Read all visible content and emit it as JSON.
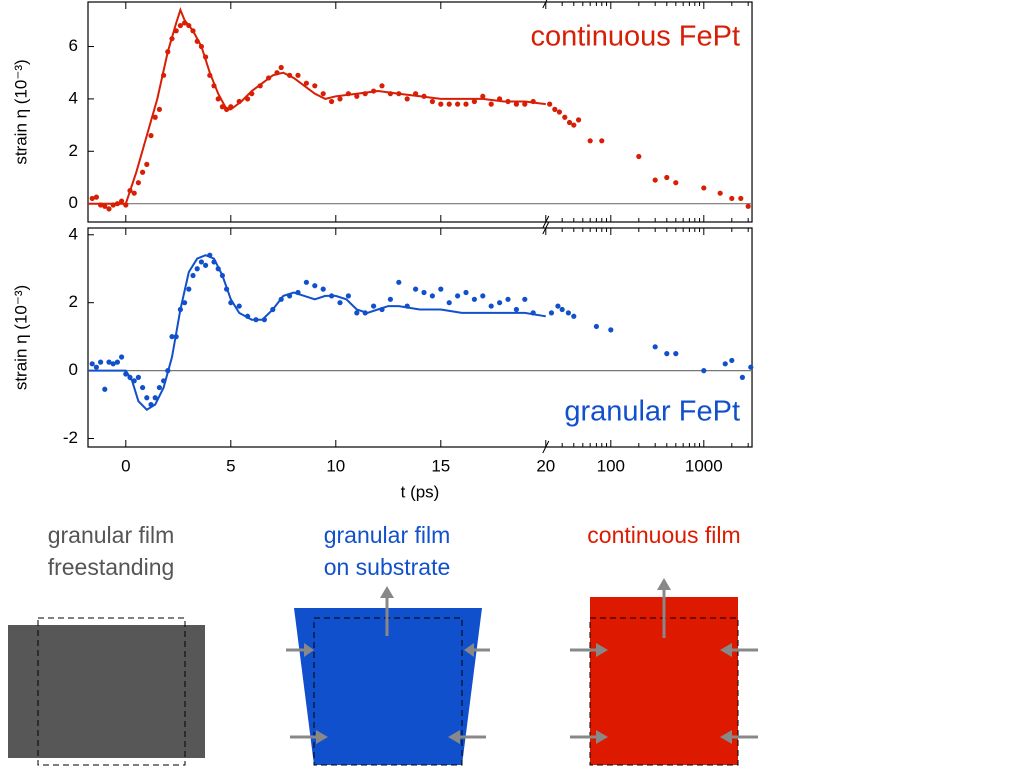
{
  "chart_data": [
    {
      "type": "scatter",
      "annotation": "continuous FePt",
      "annotation_color": "#d81e05",
      "ylabel": "strain η (10⁻³)",
      "xscale": "linear-log",
      "xbreak": 20,
      "xlim": [
        -1.8,
        3300
      ],
      "xticks": [
        0,
        5,
        10,
        15,
        20,
        100,
        1000
      ],
      "xminorticks": [
        30,
        40,
        50,
        60,
        70,
        80,
        90,
        200,
        300,
        400,
        500,
        600,
        700,
        800,
        900,
        2000,
        3000
      ],
      "show_xtick_labels": false,
      "ylim": [
        -0.7,
        7.7
      ],
      "yticks": [
        0,
        2,
        4,
        6
      ],
      "hline": 0,
      "series": [
        {
          "mode": "markers",
          "color": "#d81e05",
          "x": [
            -1.6,
            -1.4,
            -1.2,
            -1.0,
            -0.8,
            -0.6,
            -0.4,
            -0.2,
            0,
            0.2,
            0.4,
            0.6,
            0.8,
            1.0,
            1.2,
            1.4,
            1.6,
            1.8,
            2.0,
            2.2,
            2.4,
            2.6,
            2.8,
            3.0,
            3.2,
            3.4,
            3.6,
            3.8,
            4.0,
            4.2,
            4.4,
            4.6,
            4.8,
            5.0,
            5.4,
            5.8,
            6.0,
            6.4,
            6.8,
            7.2,
            7.4,
            7.8,
            8.2,
            8.6,
            9.0,
            9.4,
            9.8,
            10.2,
            10.6,
            11.0,
            11.4,
            11.8,
            12.2,
            12.6,
            13.0,
            13.4,
            13.8,
            14.2,
            14.6,
            15.0,
            15.4,
            15.8,
            16.2,
            16.6,
            17.0,
            17.4,
            17.8,
            18.2,
            18.6,
            19.0,
            19.4,
            22,
            25,
            28,
            32,
            36,
            40,
            45,
            60,
            80,
            200,
            300,
            400,
            500,
            1000,
            1500,
            2000,
            2500,
            3000
          ],
          "values": [
            0.2,
            0.25,
            -0.05,
            -0.1,
            -0.2,
            -0.05,
            0.0,
            0.1,
            -0.05,
            0.5,
            0.4,
            0.8,
            1.2,
            1.5,
            2.6,
            3.3,
            3.6,
            4.9,
            5.8,
            6.3,
            6.6,
            6.8,
            6.9,
            6.8,
            6.6,
            6.2,
            6.0,
            5.6,
            4.9,
            4.5,
            4.0,
            3.7,
            3.6,
            3.7,
            3.9,
            4.0,
            4.2,
            4.5,
            4.8,
            5.0,
            5.2,
            4.9,
            4.9,
            4.6,
            4.5,
            4.2,
            3.9,
            4.0,
            4.2,
            4.1,
            4.2,
            4.3,
            4.5,
            4.2,
            4.2,
            4.0,
            4.2,
            4.1,
            3.9,
            3.8,
            3.8,
            3.8,
            3.8,
            3.9,
            4.1,
            3.8,
            4.0,
            3.9,
            3.8,
            3.8,
            3.9,
            3.8,
            3.6,
            3.5,
            3.3,
            3.1,
            3.0,
            3.2,
            2.4,
            2.4,
            1.8,
            0.9,
            1.0,
            0.8,
            0.6,
            0.4,
            0.2,
            0.2,
            -0.1
          ]
        },
        {
          "mode": "line",
          "color": "#d81e05",
          "x": [
            -1.8,
            0,
            0.5,
            1,
            1.5,
            2,
            2.4,
            2.6,
            2.8,
            3.2,
            3.6,
            4,
            4.4,
            4.8,
            5,
            5.5,
            6,
            6.5,
            7,
            7.5,
            8,
            8.5,
            9,
            9.5,
            10,
            11,
            12,
            13,
            14,
            15,
            16,
            17,
            18,
            19,
            20
          ],
          "values": [
            0,
            0,
            1.2,
            2.6,
            4.0,
            5.8,
            6.9,
            7.4,
            7.0,
            6.6,
            6.0,
            5.0,
            4.2,
            3.6,
            3.6,
            3.9,
            4.3,
            4.6,
            4.9,
            5.0,
            4.8,
            4.5,
            4.2,
            4.0,
            4.1,
            4.2,
            4.3,
            4.2,
            4.1,
            4.0,
            4.0,
            4.0,
            3.9,
            3.9,
            3.8
          ]
        }
      ]
    },
    {
      "type": "scatter",
      "annotation": "granular FePt",
      "annotation_color": "#1150cc",
      "ylabel": "strain η (10⁻³)",
      "xlabel": "t (ps)",
      "xscale": "linear-log",
      "xbreak": 20,
      "xlim": [
        -1.8,
        3300
      ],
      "xticks": [
        0,
        5,
        10,
        15,
        20,
        100,
        1000
      ],
      "xminorticks": [
        30,
        40,
        50,
        60,
        70,
        80,
        90,
        200,
        300,
        400,
        500,
        600,
        700,
        800,
        900,
        2000,
        3000
      ],
      "show_xtick_labels": true,
      "ylim": [
        -2.25,
        4.2
      ],
      "yticks": [
        -2,
        0,
        2,
        4
      ],
      "hline": 0,
      "series": [
        {
          "mode": "markers",
          "color": "#1150cc",
          "x": [
            -1.6,
            -1.4,
            -1.2,
            -1,
            -0.8,
            -0.6,
            -0.4,
            -0.2,
            0,
            0.2,
            0.4,
            0.6,
            0.8,
            1,
            1.2,
            1.4,
            1.6,
            1.8,
            2,
            2.2,
            2.4,
            2.6,
            2.8,
            3.0,
            3.2,
            3.4,
            3.6,
            3.8,
            4.0,
            4.2,
            4.4,
            4.6,
            4.8,
            5,
            5.4,
            5.8,
            6.2,
            6.6,
            7,
            7.4,
            7.8,
            8.2,
            8.6,
            9,
            9.4,
            9.8,
            10.2,
            10.6,
            11,
            11.4,
            11.8,
            12.2,
            12.6,
            13,
            13.4,
            13.8,
            14.2,
            14.6,
            15,
            15.4,
            15.8,
            16.2,
            16.6,
            17,
            17.4,
            17.8,
            18.2,
            18.6,
            19,
            19.4,
            23,
            27,
            30,
            35,
            40,
            70,
            100,
            300,
            400,
            500,
            1000,
            1700,
            2000,
            2600,
            3200
          ],
          "values": [
            0.2,
            0.1,
            0.25,
            -0.55,
            0.25,
            0.2,
            0.25,
            0.4,
            -0.1,
            -0.2,
            -0.3,
            -0.2,
            -0.5,
            -0.8,
            -1.0,
            -0.8,
            -0.5,
            -0.3,
            0.0,
            1.0,
            1.0,
            1.8,
            2.0,
            2.4,
            2.8,
            3.0,
            3.2,
            3.1,
            3.4,
            3.2,
            3.0,
            2.8,
            2.4,
            2.0,
            1.9,
            1.6,
            1.5,
            1.5,
            1.8,
            2.1,
            2.2,
            2.3,
            2.6,
            2.5,
            2.4,
            2.2,
            2.0,
            2.2,
            1.7,
            1.7,
            1.9,
            1.8,
            2.1,
            2.6,
            1.9,
            2.4,
            2.3,
            2.2,
            2.4,
            2.0,
            2.2,
            2.3,
            2.1,
            2.2,
            1.9,
            2.0,
            2.1,
            1.8,
            2.1,
            1.7,
            1.7,
            1.9,
            1.8,
            1.7,
            1.6,
            1.3,
            1.2,
            0.7,
            0.5,
            0.5,
            0.0,
            0.2,
            0.3,
            -0.2,
            0.1
          ]
        },
        {
          "mode": "line",
          "color": "#1150cc",
          "x": [
            -1.8,
            0,
            0.3,
            0.6,
            1,
            1.4,
            1.8,
            2.2,
            2.6,
            3,
            3.4,
            3.8,
            4.2,
            4.6,
            5,
            5.4,
            6,
            6.5,
            7,
            7.5,
            8,
            8.5,
            9,
            9.5,
            10,
            10.5,
            11,
            11.5,
            12,
            12.5,
            13,
            14,
            15,
            16,
            17,
            18,
            19,
            20
          ],
          "values": [
            0,
            0,
            -0.3,
            -0.9,
            -1.15,
            -1.0,
            -0.5,
            0.4,
            1.8,
            2.9,
            3.3,
            3.4,
            3.3,
            2.8,
            2.1,
            1.7,
            1.5,
            1.5,
            1.8,
            2.2,
            2.3,
            2.2,
            2.1,
            2.2,
            2.2,
            2.1,
            1.8,
            1.7,
            1.8,
            1.9,
            1.9,
            1.8,
            1.8,
            1.7,
            1.7,
            1.7,
            1.7,
            1.6
          ]
        }
      ]
    }
  ],
  "diagrams": [
    {
      "lines": [
        "granular film",
        "freestanding"
      ],
      "color": "#555555"
    },
    {
      "lines": [
        "granular film",
        "on substrate"
      ],
      "color": "#1150cc"
    },
    {
      "lines": [
        "continuous film"
      ],
      "color": "#dd1a00"
    }
  ]
}
